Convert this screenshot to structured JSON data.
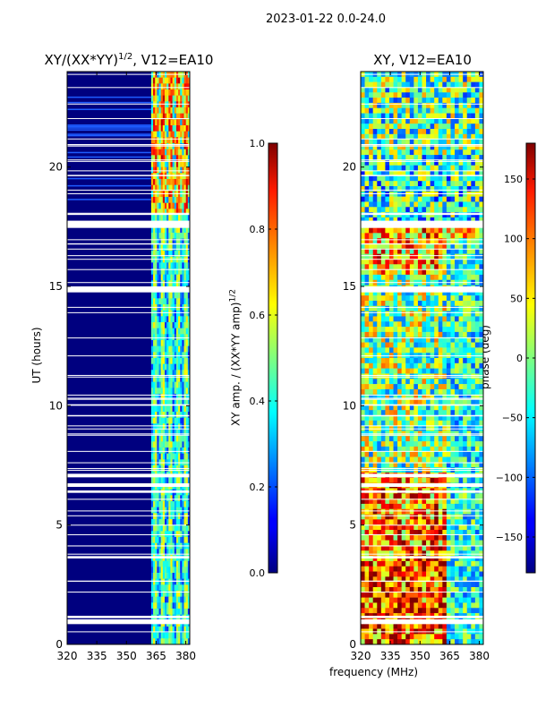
{
  "figure": {
    "suptitle": "2023-01-22 0.0-24.0",
    "xlabel": "frequency (MHz)"
  },
  "chart_data": [
    {
      "type": "heatmap",
      "title": "XY/(XX*YY)",
      "title_sup": "1/2",
      "title_suffix": ", V12=EA10",
      "xlabel": "frequency (MHz)",
      "ylabel": "UT (hours)",
      "xlim": [
        320,
        382
      ],
      "ylim": [
        0,
        24
      ],
      "xticks": [
        "320",
        "335",
        "350",
        "365",
        "380"
      ],
      "yticks": [
        "0",
        "5",
        "10",
        "15",
        "20"
      ],
      "colorbar": {
        "label": "XY amp. / (XX*YY amp)",
        "label_sup": "1/2",
        "range": [
          0.0,
          1.0
        ],
        "ticks": [
          "0.0",
          "0.2",
          "0.4",
          "0.6",
          "0.8",
          "1.0"
        ],
        "colormap": "jet"
      }
    },
    {
      "type": "heatmap",
      "title": "XY, V12=EA10",
      "xlabel": "frequency (MHz)",
      "ylabel": "",
      "xlim": [
        320,
        382
      ],
      "ylim": [
        0,
        24
      ],
      "xticks": [
        "320",
        "335",
        "350",
        "365",
        "380"
      ],
      "yticks": [
        "0",
        "5",
        "10",
        "15",
        "20"
      ],
      "colorbar": {
        "label": "phase (deg)",
        "range": [
          -180,
          180
        ],
        "ticks": [
          "−150",
          "−100",
          "−50",
          "0",
          "50",
          "100",
          "150"
        ],
        "colormap": "jet"
      }
    }
  ]
}
